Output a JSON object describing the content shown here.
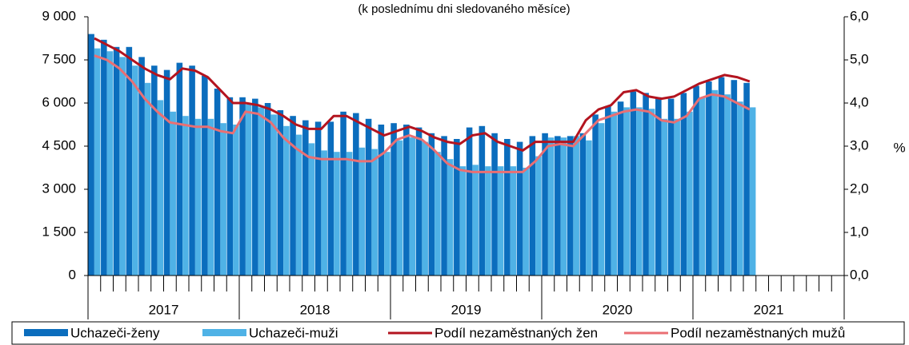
{
  "chart_data": {
    "type": "bar_line",
    "subtitle": "(k poslednímu dni sledovaného měsíce)",
    "y2_label": "%",
    "categories": [
      null,
      null,
      null,
      null,
      null,
      null,
      null,
      null,
      null,
      null,
      null,
      null,
      null,
      null,
      null,
      null,
      null,
      null,
      null,
      null,
      null,
      null,
      null,
      null,
      null,
      null,
      null,
      null,
      null,
      null,
      null,
      null,
      null,
      null,
      null,
      null,
      null,
      null,
      null,
      null,
      null,
      null,
      null,
      null,
      null,
      null,
      null,
      null,
      null,
      null,
      null,
      null,
      null,
      null,
      null,
      null,
      null,
      null,
      null,
      null
    ],
    "year_labels": [
      "2017",
      "2018",
      "2019",
      "2020",
      "2021"
    ],
    "ylim": [
      0,
      9000
    ],
    "yticks": [
      0,
      {
        "value": 1500,
        "label": "1 500"
      },
      {
        "value": 3000,
        "label": "3 000"
      },
      {
        "value": 4500,
        "label": "4 500"
      },
      {
        "value": 6000,
        "label": "6 000"
      },
      {
        "value": 7500,
        "label": "7 500"
      },
      {
        "value": 9000,
        "label": "9 000"
      }
    ],
    "y2lim": [
      0,
      6
    ],
    "y2ticks": [
      {
        "value": 0,
        "label": "0,0"
      },
      {
        "value": 1,
        "label": "1,0"
      },
      {
        "value": 2,
        "label": "2,0"
      },
      {
        "value": 3,
        "label": "3,0"
      },
      {
        "value": 4,
        "label": "4,0"
      },
      {
        "value": 5,
        "label": "5,0"
      },
      {
        "value": 6,
        "label": "6,0"
      }
    ],
    "legend": "bottom",
    "series": [
      {
        "name": "Uchazeči-ženy",
        "kind": "bar",
        "color": "#0b6dbd",
        "values": [
          8400,
          8200,
          7950,
          7950,
          7600,
          7300,
          7150,
          7400,
          7300,
          6950,
          6500,
          6200,
          6200,
          6150,
          6000,
          5750,
          5550,
          5400,
          5350,
          5350,
          5700,
          5650,
          5450,
          5250,
          5300,
          5250,
          5150,
          4950,
          4850,
          4750,
          5150,
          5200,
          4950,
          4750,
          4650,
          4850,
          4950,
          4850,
          4850,
          4950,
          5600,
          5900,
          6050,
          6400,
          6350,
          6200,
          6150,
          6350,
          6600,
          6750,
          6900,
          6800,
          6700,
          null,
          null,
          null,
          null,
          null,
          null,
          null
        ]
      },
      {
        "name": "Uchazeči-muži",
        "kind": "bar",
        "color": "#4fb2e6",
        "values": [
          7900,
          7800,
          7600,
          7300,
          6700,
          6100,
          5700,
          5550,
          5450,
          5450,
          5300,
          5250,
          5950,
          5850,
          5600,
          5200,
          4900,
          4600,
          4350,
          4300,
          4300,
          4450,
          4400,
          4300,
          4700,
          4800,
          4650,
          4300,
          4050,
          3800,
          3850,
          3800,
          3800,
          3800,
          3750,
          4150,
          4800,
          4800,
          4850,
          4700,
          5300,
          5700,
          5850,
          5850,
          5800,
          5450,
          5450,
          5700,
          6200,
          6450,
          6300,
          6050,
          5850,
          null,
          null,
          null,
          null,
          null,
          null,
          null
        ]
      },
      {
        "name": "Podíl nezaměstnaných žen",
        "kind": "line",
        "axis": "y2",
        "color": "#b3141f",
        "values": [
          5.5,
          5.35,
          5.2,
          5.0,
          4.8,
          4.65,
          4.55,
          4.8,
          4.75,
          4.6,
          4.3,
          4.0,
          4.0,
          3.95,
          3.85,
          3.7,
          3.5,
          3.4,
          3.4,
          3.7,
          3.7,
          3.55,
          3.4,
          3.25,
          3.35,
          3.45,
          3.35,
          3.2,
          3.1,
          3.05,
          3.25,
          3.3,
          3.1,
          3.0,
          2.9,
          3.1,
          3.1,
          3.1,
          3.1,
          3.6,
          3.85,
          3.95,
          4.25,
          4.3,
          4.15,
          4.1,
          4.15,
          4.3,
          4.45,
          4.55,
          4.65,
          4.6,
          4.5,
          null,
          null,
          null,
          null,
          null,
          null,
          null
        ]
      },
      {
        "name": "Podíl nezaměstnaných mužů",
        "kind": "line",
        "axis": "y2",
        "color": "#ea6f73",
        "values": [
          5.1,
          5.0,
          4.8,
          4.5,
          4.1,
          3.8,
          3.55,
          3.5,
          3.45,
          3.45,
          3.35,
          3.3,
          3.8,
          3.75,
          3.55,
          3.2,
          2.95,
          2.75,
          2.7,
          2.7,
          2.7,
          2.65,
          2.65,
          2.85,
          3.15,
          3.25,
          3.15,
          2.9,
          2.6,
          2.45,
          2.4,
          2.4,
          2.4,
          2.4,
          2.4,
          2.65,
          3.0,
          3.05,
          3.0,
          3.3,
          3.6,
          3.7,
          3.8,
          3.85,
          3.8,
          3.6,
          3.55,
          3.7,
          4.1,
          4.2,
          4.15,
          4.0,
          3.85,
          null,
          null,
          null,
          null,
          null,
          null,
          null
        ]
      }
    ]
  }
}
